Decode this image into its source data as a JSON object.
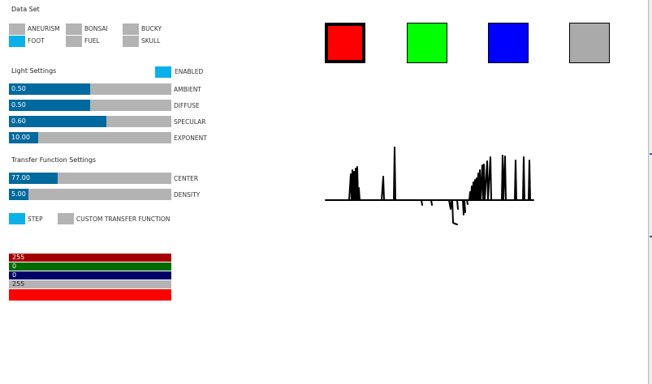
{
  "data_set": {
    "title": "Data Set",
    "items": [
      {
        "label": "ANEURISM",
        "selected": false
      },
      {
        "label": "BONSAI",
        "selected": false
      },
      {
        "label": "BUCKY",
        "selected": false
      },
      {
        "label": "FOOT",
        "selected": true
      },
      {
        "label": "FUEL",
        "selected": false
      },
      {
        "label": "SKULL",
        "selected": false
      }
    ]
  },
  "light_settings": {
    "title": "Light Settings",
    "enabled_label": "ENABLED",
    "enabled": true,
    "sliders": [
      {
        "label": "AMBIENT",
        "value_text": "0.50",
        "fraction": 0.5
      },
      {
        "label": "DIFFUSE",
        "value_text": "0.50",
        "fraction": 0.5
      },
      {
        "label": "SPECULAR",
        "value_text": "0.60",
        "fraction": 0.6
      },
      {
        "label": "EXPONENT",
        "value_text": "10.00",
        "fraction": 0.18
      }
    ]
  },
  "transfer_function": {
    "title": "Transfer Function Settings",
    "sliders": [
      {
        "label": "CENTER",
        "value_text": "77.00",
        "fraction": 0.3
      },
      {
        "label": "DENSITY",
        "value_text": "5.00",
        "fraction": 0.12
      }
    ],
    "step_label": "STEP",
    "step_enabled": true,
    "custom_label": "CUSTOM TRANSFER FUNCTION",
    "custom_enabled": false
  },
  "color_controls": {
    "red": "255",
    "green": "0",
    "blue": "0",
    "alpha": "255",
    "preview_color": "#ff0000"
  },
  "swatches": [
    {
      "color": "#ff0000",
      "selected": true
    },
    {
      "color": "#00ff00",
      "selected": false
    },
    {
      "color": "#0000ff",
      "selected": false
    },
    {
      "color": "#aaaaaa",
      "selected": false
    }
  ],
  "colors": {
    "toggle_on": "#0ab1e8",
    "toggle_off": "#b3b3b3",
    "slider_fill": "#00699e",
    "red_bar": "#a50000",
    "green_bar": "#006900",
    "blue_bar": "#000069",
    "alpha_bar": "#b3b3b3"
  }
}
